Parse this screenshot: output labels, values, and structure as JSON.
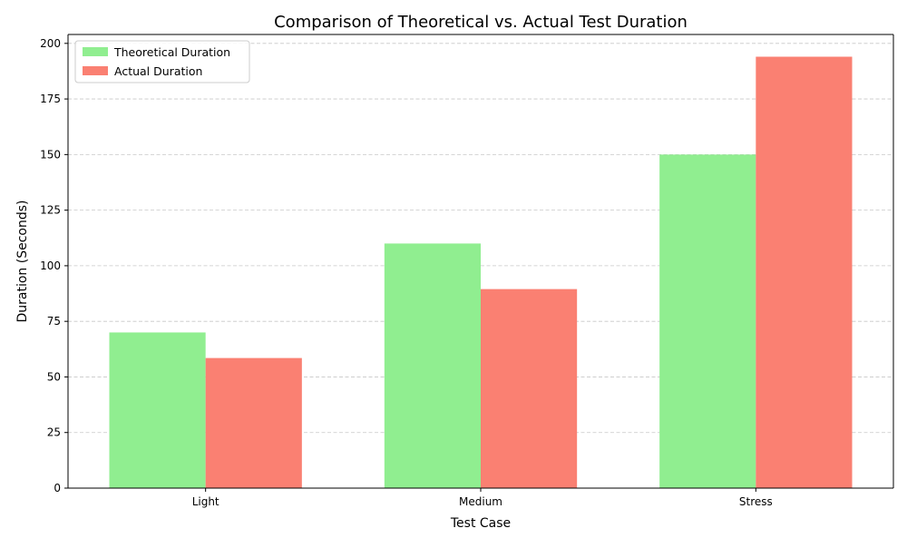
{
  "chart_data": {
    "type": "bar",
    "title": "Comparison of Theoretical vs. Actual Test Duration",
    "xlabel": "Test Case",
    "ylabel": "Duration (Seconds)",
    "categories": [
      "Light",
      "Medium",
      "Stress"
    ],
    "series": [
      {
        "name": "Theoretical Duration",
        "values": [
          70,
          110,
          150
        ],
        "color": "#90EE90"
      },
      {
        "name": "Actual Duration",
        "values": [
          58.5,
          89.5,
          194
        ],
        "color": "#FA8072"
      }
    ],
    "ylim": [
      0,
      204
    ],
    "yticks": [
      0,
      25,
      50,
      75,
      100,
      125,
      150,
      175,
      200
    ],
    "grid": true,
    "legend_position": "top-left"
  }
}
